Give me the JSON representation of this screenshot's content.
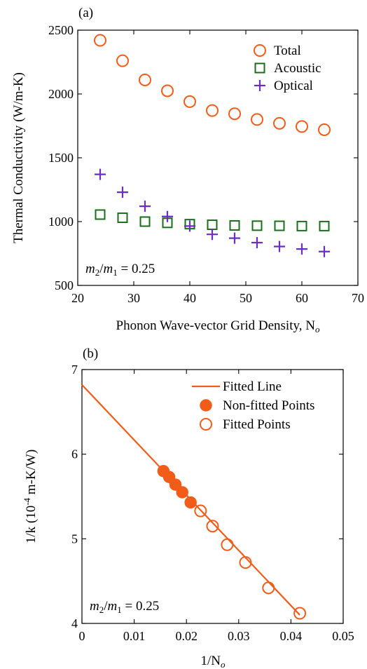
{
  "colors": {
    "total": "#f25c19",
    "acoustic": "#1a6e1a",
    "optical": "#6a2fc0",
    "fit": "#f25c19"
  },
  "chart_data": [
    {
      "panel_label": "(a)",
      "type": "scatter",
      "xlabel": "Phonon Wave-vector Grid Density, N",
      "xlabel_sub": "o",
      "ylabel": "Thermal Conductivity (W/m-K)",
      "xlim": [
        20,
        70
      ],
      "ylim": [
        500,
        2500
      ],
      "xticks": [
        "20",
        "30",
        "40",
        "50",
        "60",
        "70"
      ],
      "yticks": [
        "500",
        "1000",
        "1500",
        "2000",
        "2500"
      ],
      "xtick_values": [
        20,
        30,
        40,
        50,
        60,
        70
      ],
      "ytick_values": [
        500,
        1000,
        1500,
        2000,
        2500
      ],
      "legend_position": "top-right",
      "annotation": {
        "m2": "m",
        "sub2": "2",
        "slash": "/",
        "m1": "m",
        "sub1": "1",
        "value": " = 0.25"
      },
      "series": [
        {
          "name": "Total",
          "marker": "open-circle",
          "x": [
            24,
            28,
            32,
            36,
            40,
            44,
            48,
            52,
            56,
            60,
            64
          ],
          "y": [
            2420,
            2260,
            2110,
            2025,
            1940,
            1870,
            1845,
            1800,
            1770,
            1745,
            1720
          ]
        },
        {
          "name": "Acoustic",
          "marker": "open-square",
          "x": [
            24,
            28,
            32,
            36,
            40,
            44,
            48,
            52,
            56,
            60,
            64
          ],
          "y": [
            1055,
            1030,
            1000,
            990,
            980,
            975,
            970,
            968,
            967,
            965,
            965
          ]
        },
        {
          "name": "Optical",
          "marker": "plus",
          "x": [
            24,
            28,
            32,
            36,
            40,
            44,
            48,
            52,
            56,
            60,
            64
          ],
          "y": [
            1370,
            1230,
            1120,
            1040,
            965,
            900,
            870,
            835,
            805,
            785,
            765
          ]
        }
      ]
    },
    {
      "panel_label": "(b)",
      "type": "scatter",
      "xlabel": "1/N",
      "xlabel_sub": "o",
      "ylabel": "1/k (10",
      "ylabel_sup": "-4",
      "ylabel_tail": " m-K/W)",
      "xlim": [
        0,
        0.05
      ],
      "ylim": [
        4,
        7
      ],
      "xticks": [
        "0",
        "0.01",
        "0.02",
        "0.03",
        "0.04",
        "0.05"
      ],
      "yticks": [
        "4",
        "5",
        "6",
        "7"
      ],
      "xtick_values": [
        0,
        0.01,
        0.02,
        0.03,
        0.04,
        0.05
      ],
      "ytick_values": [
        4,
        5,
        6,
        7
      ],
      "legend_position": "top-right",
      "annotation": {
        "m2": "m",
        "sub2": "2",
        "slash": "/",
        "m1": "m",
        "sub1": "1",
        "value": " = 0.25"
      },
      "series": [
        {
          "name": "Fitted Line",
          "marker": "line",
          "x": [
            0,
            0.0417
          ],
          "y": [
            6.82,
            4.1
          ]
        },
        {
          "name": "Non-fitted Points",
          "marker": "filled-circle",
          "x": [
            0.0156,
            0.0167,
            0.0179,
            0.0192,
            0.0208
          ],
          "y": [
            5.8,
            5.73,
            5.64,
            5.55,
            5.43
          ]
        },
        {
          "name": "Fitted Points",
          "marker": "open-circle",
          "x": [
            0.0227,
            0.025,
            0.0278,
            0.0313,
            0.0357,
            0.0417
          ],
          "y": [
            5.33,
            5.15,
            4.93,
            4.72,
            4.42,
            4.12
          ]
        }
      ]
    }
  ]
}
